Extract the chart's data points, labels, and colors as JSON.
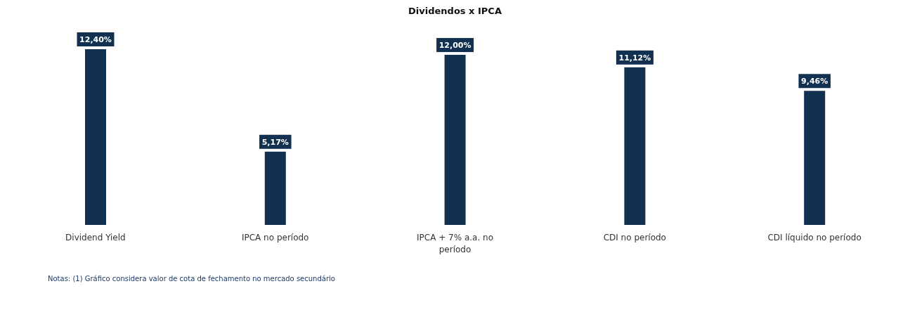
{
  "chart_data": {
    "type": "bar",
    "title": "Dividendos x IPCA",
    "categories": [
      "Dividend Yield",
      "IPCA no período",
      "IPCA + 7% a.a. no período",
      "CDI no período",
      "CDI líquido no período"
    ],
    "values": [
      12.4,
      5.17,
      12.0,
      11.12,
      9.46
    ],
    "value_labels": [
      "12,40%",
      "5,17%",
      "12,00%",
      "11,12%",
      "9,46%"
    ],
    "color": "#12304f",
    "annotations": [
      "Notas: (1) Gráfico considera valor de cota de fechamento no mercado secundário"
    ]
  }
}
